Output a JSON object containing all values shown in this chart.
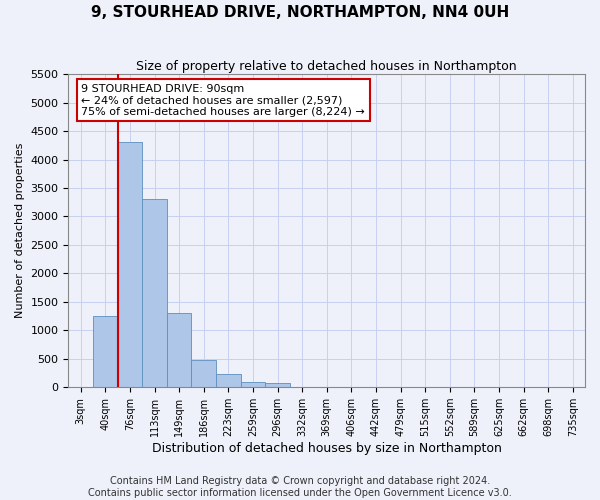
{
  "title": "9, STOURHEAD DRIVE, NORTHAMPTON, NN4 0UH",
  "subtitle": "Size of property relative to detached houses in Northampton",
  "xlabel": "Distribution of detached houses by size in Northampton",
  "ylabel": "Number of detached properties",
  "footer_line1": "Contains HM Land Registry data © Crown copyright and database right 2024.",
  "footer_line2": "Contains public sector information licensed under the Open Government Licence v3.0.",
  "bar_labels": [
    "3sqm",
    "40sqm",
    "76sqm",
    "113sqm",
    "149sqm",
    "186sqm",
    "223sqm",
    "259sqm",
    "296sqm",
    "332sqm",
    "369sqm",
    "406sqm",
    "442sqm",
    "479sqm",
    "515sqm",
    "552sqm",
    "589sqm",
    "625sqm",
    "662sqm",
    "698sqm",
    "735sqm"
  ],
  "bar_values": [
    0,
    1250,
    4300,
    3300,
    1300,
    480,
    230,
    100,
    70,
    0,
    0,
    0,
    0,
    0,
    0,
    0,
    0,
    0,
    0,
    0,
    0
  ],
  "bar_color": "#aec6e8",
  "bar_edge_color": "#5b8fbe",
  "highlight_line_index": 2,
  "bar_width": 1.0,
  "ylim": [
    0,
    5500
  ],
  "yticks": [
    0,
    500,
    1000,
    1500,
    2000,
    2500,
    3000,
    3500,
    4000,
    4500,
    5000,
    5500
  ],
  "annotation_text": "9 STOURHEAD DRIVE: 90sqm\n← 24% of detached houses are smaller (2,597)\n75% of semi-detached houses are larger (8,224) →",
  "annotation_box_facecolor": "#ffffff",
  "annotation_box_edgecolor": "#cc0000",
  "property_line_color": "#cc0000",
  "grid_color": "#c8d0f0",
  "background_color": "#eef1fa",
  "title_fontsize": 11,
  "subtitle_fontsize": 9,
  "ylabel_fontsize": 8,
  "xlabel_fontsize": 9,
  "tick_fontsize": 8,
  "xtick_fontsize": 7,
  "annotation_fontsize": 8,
  "footer_fontsize": 7
}
